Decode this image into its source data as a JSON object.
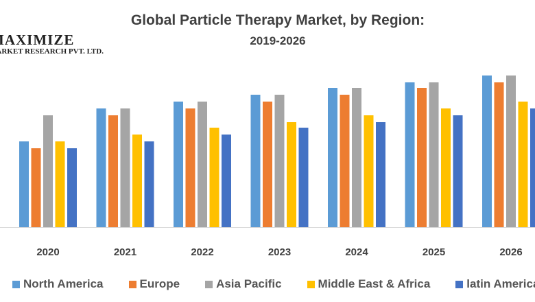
{
  "chart_data": {
    "type": "bar",
    "title": "Global Particle Therapy Market, by Region:",
    "subtitle": "2019-2026",
    "xlabel": "",
    "ylabel": "",
    "categories": [
      "2020",
      "2021",
      "2022",
      "2023",
      "2024",
      "2025",
      "2026"
    ],
    "ylim": [
      0,
      240
    ],
    "grid": false,
    "legend": "bottom",
    "series": [
      {
        "name": "North America",
        "color": "#5B9BD5",
        "values": [
          125,
          173,
          183,
          193,
          203,
          211,
          221
        ]
      },
      {
        "name": "Europe",
        "color": "#ED7D31",
        "values": [
          115,
          163,
          173,
          183,
          193,
          203,
          211
        ]
      },
      {
        "name": "Asia Pacific",
        "color": "#A5A5A5",
        "values": [
          163,
          173,
          183,
          193,
          203,
          211,
          221
        ]
      },
      {
        "name": "Middle East & Africa",
        "color": "#FFC000",
        "values": [
          125,
          135,
          145,
          153,
          163,
          173,
          183
        ]
      },
      {
        "name": "latin America",
        "color": "#4472C4",
        "values": [
          115,
          125,
          135,
          145,
          153,
          163,
          173
        ]
      }
    ]
  },
  "watermark": {
    "line1": "MAXIMIZE",
    "line2": "MARKET RESEARCH PVT. LTD."
  }
}
